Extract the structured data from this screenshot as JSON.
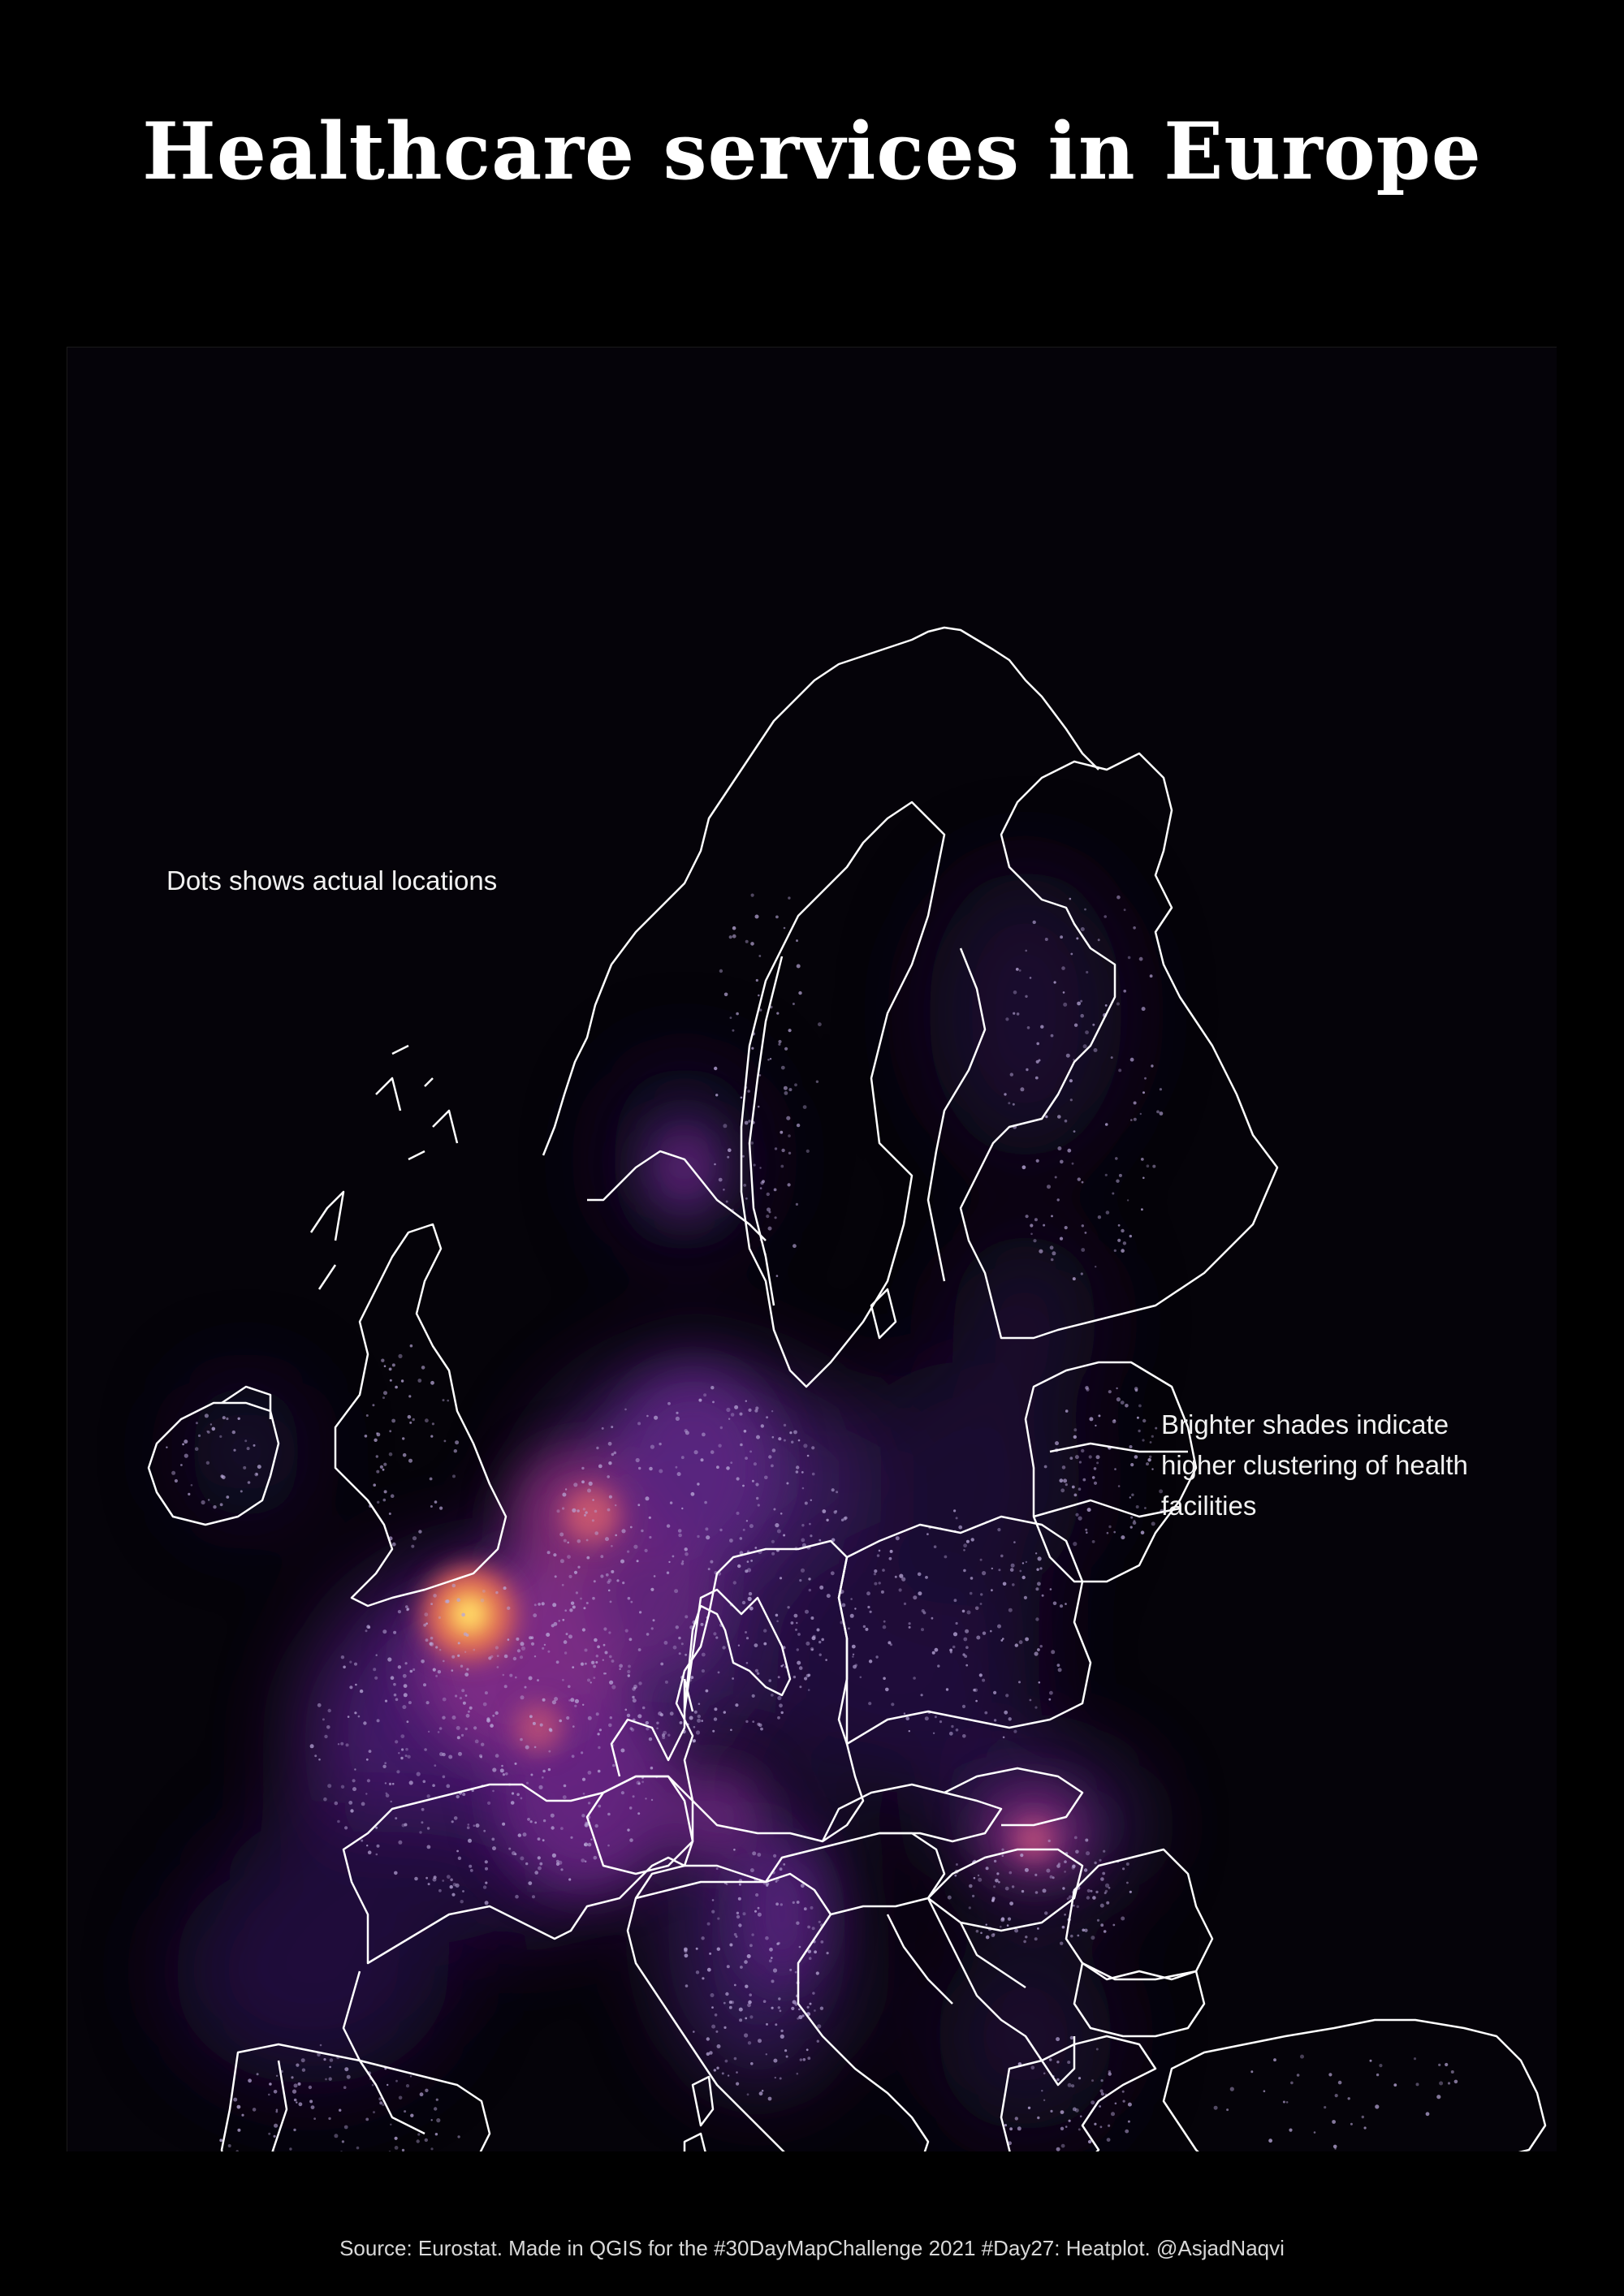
{
  "title": "Healthcare services in Europe",
  "annotations": {
    "dots_note": "Dots shows actual locations",
    "brightness_note": "Brighter shades indicate\nhigher clustering of health\nfacilities"
  },
  "source": "Source: Eurostat. Made in QGIS for the #30DayMapChallenge 2021 #Day27: Heatplot. @AsjadNaqvi",
  "map": {
    "type": "heatmap",
    "region": "Europe",
    "colors": {
      "background": "#000000",
      "map_background": "#050309",
      "borders": "#ffffff",
      "heat_low": "#2a1450",
      "heat_mid": "#7a2a8c",
      "heat_high": "#e0606a",
      "heat_peak": "#ffe060",
      "dots": "#b9a8d8"
    }
  }
}
